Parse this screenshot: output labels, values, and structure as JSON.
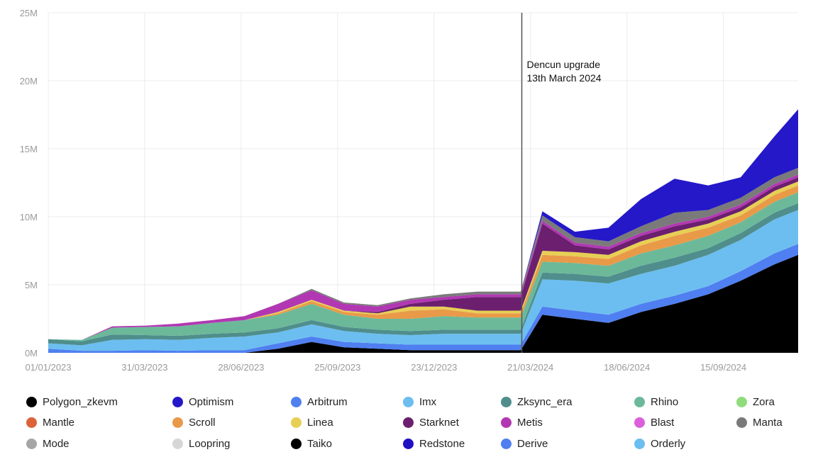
{
  "chart_data": {
    "type": "area",
    "stacked": true,
    "title": "",
    "xlabel": "",
    "ylabel": "",
    "ylim": [
      0,
      25000000
    ],
    "y_ticks": [
      "0M",
      "5M",
      "10M",
      "15M",
      "20M",
      "25M"
    ],
    "x_ticks": [
      "01/01/2023",
      "31/03/2023",
      "28/06/2023",
      "25/09/2023",
      "23/12/2023",
      "21/03/2024",
      "18/06/2024",
      "15/09/2024"
    ],
    "xlim": [
      "2023-01-01",
      "2024-11-23"
    ],
    "grid": true,
    "legend_position": "bottom",
    "annotation": {
      "date": "2024-03-13",
      "lines": [
        "Dencun upgrade",
        "13th March 2024"
      ]
    },
    "x": [
      "2023-01-01",
      "2023-02-01",
      "2023-03-01",
      "2023-04-01",
      "2023-05-01",
      "2023-06-01",
      "2023-07-01",
      "2023-08-01",
      "2023-09-01",
      "2023-10-01",
      "2023-11-01",
      "2023-12-01",
      "2024-01-01",
      "2024-02-01",
      "2024-03-12",
      "2024-04-01",
      "2024-05-01",
      "2024-06-01",
      "2024-07-01",
      "2024-08-01",
      "2024-09-01",
      "2024-10-01",
      "2024-11-01",
      "2024-11-23"
    ],
    "series": [
      {
        "name": "Polygon_zkevm",
        "color": "#000000",
        "values": [
          0,
          0,
          0,
          0,
          0,
          0,
          0,
          0.3,
          0.8,
          0.4,
          0.3,
          0.2,
          0.2,
          0.2,
          0.2,
          2.8,
          2.5,
          2.2,
          3.0,
          3.6,
          4.3,
          5.3,
          6.5,
          7.2
        ]
      },
      {
        "name": "Arbitrum",
        "color": "#4f7ff0",
        "values": [
          0.3,
          0.15,
          0.15,
          0.2,
          0.15,
          0.2,
          0.2,
          0.4,
          0.4,
          0.4,
          0.4,
          0.4,
          0.4,
          0.4,
          0.4,
          0.6,
          0.6,
          0.6,
          0.6,
          0.6,
          0.6,
          0.7,
          0.8,
          0.8
        ]
      },
      {
        "name": "Imx",
        "color": "#6cbef0",
        "values": [
          0.4,
          0.4,
          0.8,
          0.8,
          0.8,
          0.9,
          1.0,
          0.8,
          0.9,
          0.8,
          0.7,
          0.7,
          0.8,
          0.8,
          0.8,
          2.0,
          2.2,
          2.3,
          2.2,
          2.2,
          2.3,
          2.3,
          2.5,
          2.5
        ]
      },
      {
        "name": "Zksync_era",
        "color": "#4f8e8c",
        "values": [
          0.3,
          0.3,
          0.4,
          0.3,
          0.3,
          0.3,
          0.3,
          0.3,
          0.3,
          0.3,
          0.3,
          0.3,
          0.3,
          0.3,
          0.3,
          0.5,
          0.5,
          0.5,
          0.6,
          0.6,
          0.5,
          0.5,
          0.5,
          0.5
        ]
      },
      {
        "name": "Rhino",
        "color": "#6cb99a",
        "values": [
          0,
          0.1,
          0.5,
          0.6,
          0.7,
          0.8,
          0.9,
          1.0,
          1.2,
          0.9,
          0.8,
          0.9,
          1.0,
          0.9,
          0.9,
          0.8,
          0.8,
          0.8,
          0.9,
          0.9,
          0.9,
          0.8,
          0.8,
          0.8
        ]
      },
      {
        "name": "Scroll",
        "color": "#e99a48",
        "values": [
          0,
          0,
          0,
          0,
          0,
          0,
          0,
          0.1,
          0.2,
          0.2,
          0.3,
          0.6,
          0.5,
          0.3,
          0.3,
          0.5,
          0.5,
          0.5,
          0.6,
          0.7,
          0.6,
          0.5,
          0.5,
          0.5
        ]
      },
      {
        "name": "Linea",
        "color": "#e7cf55",
        "values": [
          0,
          0,
          0,
          0,
          0,
          0,
          0,
          0.1,
          0.1,
          0.1,
          0.1,
          0.3,
          0.2,
          0.2,
          0.2,
          0.3,
          0.3,
          0.3,
          0.3,
          0.3,
          0.3,
          0.3,
          0.3,
          0.3
        ]
      },
      {
        "name": "Starknet",
        "color": "#6b1f6e",
        "values": [
          0,
          0,
          0,
          0,
          0,
          0,
          0,
          0,
          0,
          0,
          0.1,
          0.2,
          0.5,
          1.0,
          1.0,
          2.0,
          0.5,
          0.4,
          0.4,
          0.4,
          0.3,
          0.3,
          0.3,
          0.3
        ]
      },
      {
        "name": "Metis",
        "color": "#b237b3",
        "values": [
          0,
          0,
          0.1,
          0.1,
          0.2,
          0.2,
          0.3,
          0.6,
          0.7,
          0.5,
          0.4,
          0.3,
          0.2,
          0.2,
          0.2,
          0.2,
          0.2,
          0.2,
          0.2,
          0.2,
          0.2,
          0.2,
          0.2,
          0.2
        ]
      },
      {
        "name": "Manta",
        "color": "#7a7a7a",
        "values": [
          0,
          0,
          0,
          0,
          0,
          0,
          0,
          0,
          0.1,
          0.1,
          0.1,
          0.1,
          0.2,
          0.2,
          0.2,
          0.4,
          0.4,
          0.4,
          0.5,
          0.8,
          0.5,
          0.5,
          0.5,
          0.5
        ]
      },
      {
        "name": "Optimism",
        "color": "#2418c9",
        "values": [
          0,
          0,
          0,
          0,
          0,
          0,
          0,
          0,
          0,
          0,
          0,
          0,
          0,
          0,
          0,
          0.3,
          0.4,
          1.0,
          2.0,
          2.5,
          1.8,
          1.5,
          3.0,
          4.3
        ]
      }
    ],
    "value_unit": "M",
    "legend": [
      {
        "name": "Polygon_zkevm",
        "color": "#000000"
      },
      {
        "name": "Optimism",
        "color": "#2418c9"
      },
      {
        "name": "Arbitrum",
        "color": "#4f7ff0"
      },
      {
        "name": "Imx",
        "color": "#6cbef0"
      },
      {
        "name": "Zksync_era",
        "color": "#4f8e8c"
      },
      {
        "name": "Rhino",
        "color": "#6cb99a"
      },
      {
        "name": "Zora",
        "color": "#8fdc7c"
      },
      {
        "name": "Mantle",
        "color": "#dc6338"
      },
      {
        "name": "Scroll",
        "color": "#e99a48"
      },
      {
        "name": "Linea",
        "color": "#e7cf55"
      },
      {
        "name": "Starknet",
        "color": "#6b1f6e"
      },
      {
        "name": "Metis",
        "color": "#b237b3"
      },
      {
        "name": "Blast",
        "color": "#dc5fdc"
      },
      {
        "name": "Manta",
        "color": "#7a7a7a"
      },
      {
        "name": "Mode",
        "color": "#a6a6a6"
      },
      {
        "name": "Loopring",
        "color": "#d6d6d6"
      },
      {
        "name": "Taiko",
        "color": "#000000"
      },
      {
        "name": "Redstone",
        "color": "#1f10c2"
      },
      {
        "name": "Derive",
        "color": "#4f7ff0"
      },
      {
        "name": "Orderly",
        "color": "#6cbef0"
      }
    ]
  }
}
